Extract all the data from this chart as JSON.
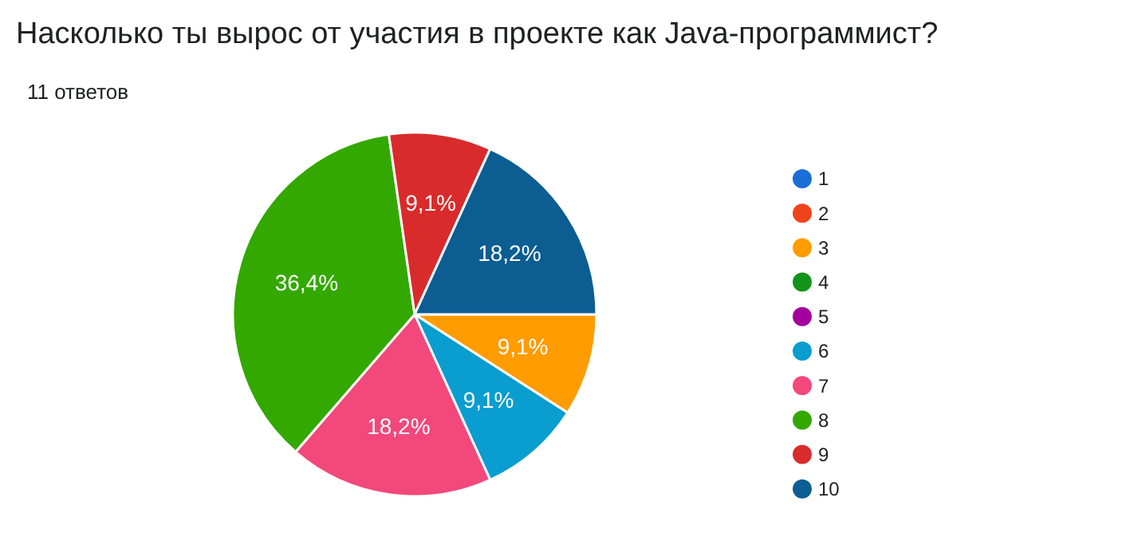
{
  "chart_data": {
    "type": "pie",
    "title": "Насколько ты вырос от участия в проекте как Java-программист?",
    "subtitle": "11 ответов",
    "categories": [
      "1",
      "2",
      "3",
      "4",
      "5",
      "6",
      "7",
      "8",
      "9",
      "10"
    ],
    "values": [
      0,
      0,
      9.1,
      0,
      0,
      9.1,
      18.2,
      36.4,
      9.1,
      18.2
    ],
    "value_labels": [
      null,
      null,
      "9,1%",
      null,
      null,
      "9,1%",
      "18,2%",
      "36,4%",
      "9,1%",
      "18,2%"
    ],
    "colors": [
      "#1a6fd6",
      "#f0421c",
      "#ff9c00",
      "#12941a",
      "#a3009f",
      "#0a9dcf",
      "#f2487b",
      "#33a800",
      "#d92b2b",
      "#0b5d92"
    ],
    "legend": "right"
  }
}
